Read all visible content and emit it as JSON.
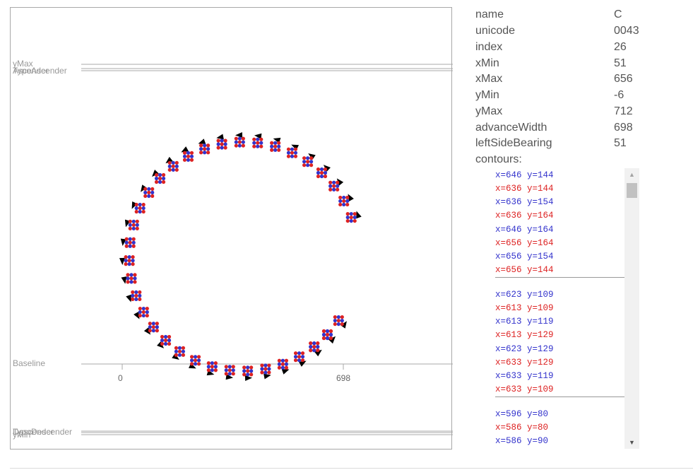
{
  "glyph": {
    "metrics": {
      "ymax_label": "yMax",
      "typo_ascender_label": "TypoAscender",
      "ascender_label": "Ascender",
      "baseline_label": "Baseline",
      "typo_descender_label": "TypoDescender",
      "descender_label": "Descender",
      "ymin_label": "yMin"
    },
    "ticks": {
      "left": "0",
      "right": "698"
    }
  },
  "info": {
    "rows": [
      {
        "key": "name",
        "value": "C"
      },
      {
        "key": "unicode",
        "value": "0043"
      },
      {
        "key": "index",
        "value": "26"
      },
      {
        "key": "xMin",
        "value": "51"
      },
      {
        "key": "xMax",
        "value": "656"
      },
      {
        "key": "yMin",
        "value": "-6"
      },
      {
        "key": "yMax",
        "value": "712"
      },
      {
        "key": "advanceWidth",
        "value": "698"
      },
      {
        "key": "leftSideBearing",
        "value": "51"
      }
    ],
    "contours_label": "contours:"
  },
  "contours": [
    [
      {
        "text": "x=646 y=144",
        "on": true
      },
      {
        "text": "x=636 y=144",
        "on": false
      },
      {
        "text": "x=636 y=154",
        "on": true
      },
      {
        "text": "x=636 y=164",
        "on": false
      },
      {
        "text": "x=646 y=164",
        "on": true
      },
      {
        "text": "x=656 y=164",
        "on": false
      },
      {
        "text": "x=656 y=154",
        "on": true
      },
      {
        "text": "x=656 y=144",
        "on": false
      }
    ],
    [
      {
        "text": "x=623 y=109",
        "on": true
      },
      {
        "text": "x=613 y=109",
        "on": false
      },
      {
        "text": "x=613 y=119",
        "on": true
      },
      {
        "text": "x=613 y=129",
        "on": false
      },
      {
        "text": "x=623 y=129",
        "on": true
      },
      {
        "text": "x=633 y=129",
        "on": false
      },
      {
        "text": "x=633 y=119",
        "on": true
      },
      {
        "text": "x=633 y=109",
        "on": false
      }
    ],
    [
      {
        "text": "x=596 y=80",
        "on": true
      },
      {
        "text": "x=586 y=80",
        "on": false
      },
      {
        "text": "x=586 y=90",
        "on": true
      }
    ]
  ],
  "colors": {
    "on_point": "#3333cc",
    "off_point": "#dd2222",
    "arrow": "#000000",
    "metric_line": "#a8a8a8"
  }
}
